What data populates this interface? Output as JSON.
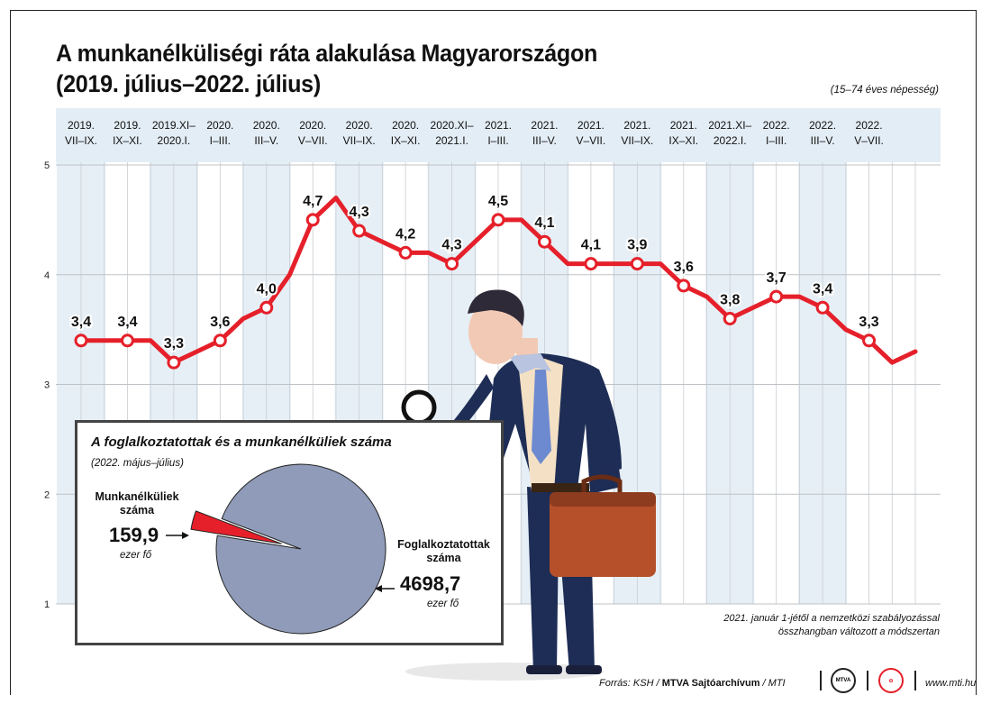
{
  "title_line1": "A munkanélküliségi ráta alakulása Magyarországon",
  "title_line2": "(2019. július–2022. július)",
  "population_note": "(15–74 éves népesség)",
  "chart_data": {
    "type": "line",
    "title": "A munkanélküliségi ráta alakulása Magyarországon (2019. július–2022. július)",
    "ylim": [
      1,
      5
    ],
    "y_ticks": [
      "1",
      "2",
      "3",
      "4",
      "5"
    ],
    "grid": true,
    "period_labels": [
      [
        "2019.",
        "VII–IX."
      ],
      [
        "2019.",
        "IX–XI."
      ],
      [
        "2019.XI–",
        "2020.I."
      ],
      [
        "2020.",
        "I–III."
      ],
      [
        "2020.",
        "III–V."
      ],
      [
        "2020.",
        "V–VII."
      ],
      [
        "2020.",
        "VII–IX."
      ],
      [
        "2020.",
        "IX–XI."
      ],
      [
        "2020.XI–",
        "2021.I."
      ],
      [
        "2021.",
        "I–III."
      ],
      [
        "2021.",
        "III–V."
      ],
      [
        "2021.",
        "V–VII."
      ],
      [
        "2021.",
        "VII–IX."
      ],
      [
        "2021.",
        "IX–XI."
      ],
      [
        "2021.XI–",
        "2022.I."
      ],
      [
        "2022.",
        "I–III."
      ],
      [
        "2022.",
        "III–V."
      ],
      [
        "2022.",
        "V–VII."
      ]
    ],
    "series": [
      {
        "color": "#e5202a",
        "values": [
          3.4,
          3.4,
          3.4,
          3.4,
          3.2,
          3.3,
          3.4,
          3.6,
          3.7,
          4.0,
          4.5,
          4.7,
          4.4,
          4.3,
          4.2,
          4.2,
          4.1,
          4.3,
          4.5,
          4.5,
          4.3,
          4.1,
          4.1,
          4.1,
          4.1,
          4.1,
          3.9,
          3.8,
          3.6,
          3.7,
          3.8,
          3.8,
          3.7,
          3.5,
          3.4,
          3.2,
          3.3
        ],
        "labels": [
          "3,4",
          "3,4",
          "3,3",
          "3,6",
          "4,0",
          "4,7",
          "4,3",
          "4,2",
          "4,3",
          "4,5",
          "4,1",
          "4,1",
          "3,9",
          "3,6",
          "3,8",
          "3,7",
          "3,4",
          "3,3"
        ]
      }
    ]
  },
  "inset": {
    "title": "A foglalkoztatottak és a munkanélküliek száma",
    "subtitle": "(2022. május–július)",
    "pie": {
      "type": "pie",
      "slices": [
        {
          "value": 4698.7,
          "color": "#8f9bb8"
        },
        {
          "value": 159.9,
          "color": "#e5202a"
        }
      ]
    },
    "unemployed_label_1": "Munkanélküliek",
    "unemployed_label_2": "száma",
    "unemployed_value": "159,9",
    "unemployed_unit": "ezer fő",
    "employed_label_1": "Foglalkoztatottak",
    "employed_label_2": "száma",
    "employed_value": "4698,7",
    "employed_unit": "ezer fő"
  },
  "methodology_note_1": "2021. január 1-jétől a nemzetközi szabályozással",
  "methodology_note_2": "összhangban változott a módszertan",
  "source_prefix": "Forrás: KSH / ",
  "source_bold": "MTVA Sajtóarchívum",
  "source_suffix": " / MTI",
  "mtva_logo_text": "MTVA",
  "website": "www.mti.hu",
  "colors": {
    "line": "#e5202a",
    "header_band": "#e3edf5",
    "column_band": "#e6eff6",
    "suit": "#1e2d55",
    "briefcase": "#b5502a"
  }
}
